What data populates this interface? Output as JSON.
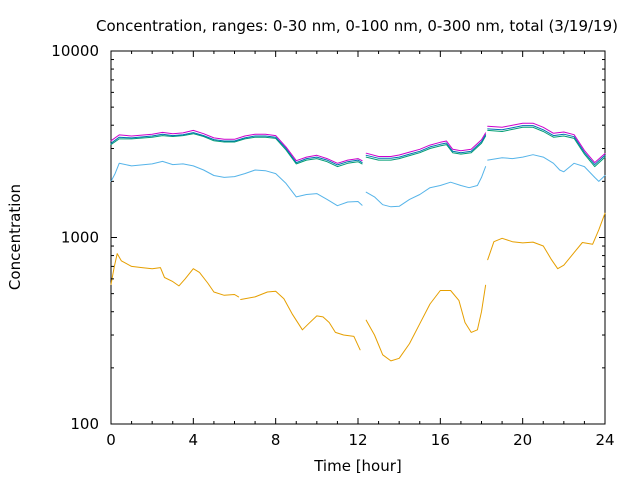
{
  "chart_data": {
    "type": "line",
    "title": "Concentration, ranges: 0-30 nm, 0-100 nm, 0-300 nm, total (3/19/19)",
    "xlabel": "Time [hour]",
    "ylabel": "Concentration",
    "xlim": [
      0,
      24
    ],
    "ylim": [
      100,
      10000
    ],
    "yscale": "log",
    "xticks": [
      0,
      4,
      8,
      12,
      16,
      20,
      24
    ],
    "yticks": [
      100,
      1000,
      10000
    ],
    "ytick_labels": [
      "100",
      "1000",
      "10000"
    ],
    "legend": "none",
    "grid": false,
    "series": [
      {
        "color": "#e69f00",
        "segments": [
          [
            [
              0,
              560
            ],
            [
              0.15,
              690
            ],
            [
              0.3,
              820
            ],
            [
              0.5,
              750
            ],
            [
              1.0,
              700
            ],
            [
              1.5,
              690
            ],
            [
              2.0,
              680
            ],
            [
              2.4,
              690
            ],
            [
              2.6,
              610
            ],
            [
              3.0,
              580
            ],
            [
              3.3,
              550
            ],
            [
              3.6,
              600
            ],
            [
              4.0,
              680
            ],
            [
              4.3,
              650
            ],
            [
              4.7,
              570
            ],
            [
              5.0,
              510
            ],
            [
              5.5,
              490
            ],
            [
              6.0,
              495
            ],
            [
              6.2,
              480
            ]
          ],
          [
            [
              6.3,
              465
            ],
            [
              7.0,
              480
            ],
            [
              7.6,
              510
            ],
            [
              8.0,
              515
            ],
            [
              8.4,
              470
            ],
            [
              8.8,
              390
            ],
            [
              9.3,
              320
            ],
            [
              9.6,
              345
            ],
            [
              10.0,
              380
            ],
            [
              10.3,
              375
            ],
            [
              10.6,
              350
            ],
            [
              10.9,
              310
            ],
            [
              11.3,
              300
            ],
            [
              11.8,
              295
            ],
            [
              12.1,
              250
            ]
          ],
          [
            [
              12.4,
              360
            ],
            [
              12.8,
              300
            ],
            [
              13.2,
              235
            ],
            [
              13.6,
              218
            ],
            [
              14.0,
              225
            ],
            [
              14.5,
              270
            ],
            [
              15.0,
              345
            ],
            [
              15.5,
              440
            ],
            [
              16.0,
              520
            ],
            [
              16.5,
              520
            ],
            [
              16.9,
              460
            ],
            [
              17.2,
              350
            ],
            [
              17.5,
              310
            ],
            [
              17.8,
              320
            ],
            [
              18.0,
              400
            ],
            [
              18.2,
              555
            ]
          ],
          [
            [
              18.3,
              760
            ],
            [
              18.6,
              950
            ],
            [
              19.0,
              990
            ],
            [
              19.5,
              950
            ],
            [
              20.0,
              935
            ],
            [
              20.5,
              945
            ],
            [
              21.0,
              900
            ],
            [
              21.4,
              760
            ],
            [
              21.7,
              680
            ],
            [
              22.0,
              710
            ],
            [
              22.5,
              830
            ],
            [
              22.9,
              940
            ],
            [
              23.4,
              920
            ],
            [
              23.7,
              1100
            ],
            [
              24.0,
              1350
            ]
          ]
        ]
      },
      {
        "color": "#56b4e9",
        "segments": [
          [
            [
              0,
              2000
            ],
            [
              0.2,
              2200
            ],
            [
              0.4,
              2500
            ],
            [
              1.0,
              2420
            ],
            [
              2.0,
              2480
            ],
            [
              2.5,
              2560
            ],
            [
              3.0,
              2460
            ],
            [
              3.5,
              2480
            ],
            [
              4.0,
              2420
            ],
            [
              4.5,
              2300
            ],
            [
              5.0,
              2150
            ],
            [
              5.5,
              2100
            ],
            [
              6.0,
              2120
            ],
            [
              6.5,
              2200
            ],
            [
              7.0,
              2300
            ],
            [
              7.5,
              2280
            ],
            [
              8.0,
              2200
            ],
            [
              8.5,
              1950
            ],
            [
              9.0,
              1650
            ],
            [
              9.5,
              1700
            ],
            [
              10.0,
              1720
            ],
            [
              10.5,
              1600
            ],
            [
              11.0,
              1480
            ],
            [
              11.5,
              1550
            ],
            [
              12.0,
              1560
            ],
            [
              12.2,
              1490
            ]
          ],
          [
            [
              12.4,
              1750
            ],
            [
              12.8,
              1650
            ],
            [
              13.2,
              1500
            ],
            [
              13.6,
              1460
            ],
            [
              14.0,
              1470
            ],
            [
              14.5,
              1600
            ],
            [
              15.0,
              1700
            ],
            [
              15.5,
              1850
            ],
            [
              16.0,
              1900
            ],
            [
              16.5,
              1980
            ],
            [
              17.0,
              1900
            ],
            [
              17.4,
              1850
            ],
            [
              17.8,
              1900
            ],
            [
              18.0,
              2100
            ],
            [
              18.2,
              2400
            ]
          ],
          [
            [
              18.3,
              2600
            ],
            [
              19.0,
              2680
            ],
            [
              19.5,
              2650
            ],
            [
              20.0,
              2700
            ],
            [
              20.5,
              2780
            ],
            [
              21.0,
              2700
            ],
            [
              21.5,
              2500
            ],
            [
              21.8,
              2300
            ],
            [
              22.0,
              2250
            ],
            [
              22.5,
              2500
            ],
            [
              23.0,
              2400
            ],
            [
              23.5,
              2100
            ],
            [
              23.7,
              2000
            ],
            [
              24.0,
              2150
            ]
          ]
        ]
      },
      {
        "color": "#009e73",
        "segments": [
          [
            [
              0,
              3150
            ],
            [
              0.4,
              3380
            ],
            [
              1.0,
              3380
            ],
            [
              2.0,
              3450
            ],
            [
              2.5,
              3520
            ],
            [
              3.0,
              3480
            ],
            [
              3.5,
              3520
            ],
            [
              4.0,
              3600
            ],
            [
              4.5,
              3480
            ],
            [
              5.0,
              3300
            ],
            [
              5.5,
              3250
            ],
            [
              6.0,
              3250
            ],
            [
              6.5,
              3380
            ],
            [
              7.0,
              3450
            ],
            [
              7.5,
              3450
            ],
            [
              8.0,
              3400
            ],
            [
              8.5,
              2950
            ],
            [
              9.0,
              2480
            ],
            [
              9.5,
              2600
            ],
            [
              10.0,
              2650
            ],
            [
              10.5,
              2550
            ],
            [
              11.0,
              2400
            ],
            [
              11.5,
              2500
            ],
            [
              12.0,
              2550
            ],
            [
              12.2,
              2480
            ]
          ],
          [
            [
              12.4,
              2700
            ],
            [
              13.0,
              2600
            ],
            [
              13.6,
              2600
            ],
            [
              14.0,
              2650
            ],
            [
              14.5,
              2750
            ],
            [
              15.0,
              2850
            ],
            [
              15.5,
              3000
            ],
            [
              16.0,
              3100
            ],
            [
              16.3,
              3150
            ],
            [
              16.6,
              2850
            ],
            [
              17.0,
              2800
            ],
            [
              17.5,
              2850
            ],
            [
              18.0,
              3200
            ],
            [
              18.2,
              3500
            ]
          ],
          [
            [
              18.3,
              3750
            ],
            [
              19.0,
              3700
            ],
            [
              19.5,
              3800
            ],
            [
              20.0,
              3900
            ],
            [
              20.5,
              3900
            ],
            [
              21.0,
              3700
            ],
            [
              21.5,
              3450
            ],
            [
              22.0,
              3500
            ],
            [
              22.5,
              3400
            ],
            [
              23.0,
              2800
            ],
            [
              23.5,
              2400
            ],
            [
              24.0,
              2700
            ]
          ]
        ]
      },
      {
        "color": "#0072b2",
        "segments": [
          [
            [
              0,
              3200
            ],
            [
              0.4,
              3450
            ],
            [
              1.0,
              3420
            ],
            [
              2.0,
              3500
            ],
            [
              2.5,
              3580
            ],
            [
              3.0,
              3520
            ],
            [
              3.5,
              3560
            ],
            [
              4.0,
              3650
            ],
            [
              4.5,
              3520
            ],
            [
              5.0,
              3350
            ],
            [
              5.5,
              3290
            ],
            [
              6.0,
              3290
            ],
            [
              6.5,
              3420
            ],
            [
              7.0,
              3500
            ],
            [
              7.5,
              3500
            ],
            [
              8.0,
              3450
            ],
            [
              8.5,
              3000
            ],
            [
              9.0,
              2520
            ],
            [
              9.5,
              2650
            ],
            [
              10.0,
              2700
            ],
            [
              10.5,
              2600
            ],
            [
              11.0,
              2450
            ],
            [
              11.5,
              2550
            ],
            [
              12.0,
              2600
            ],
            [
              12.2,
              2520
            ]
          ],
          [
            [
              12.4,
              2760
            ],
            [
              13.0,
              2660
            ],
            [
              13.6,
              2660
            ],
            [
              14.0,
              2700
            ],
            [
              14.5,
              2800
            ],
            [
              15.0,
              2900
            ],
            [
              15.5,
              3060
            ],
            [
              16.0,
              3160
            ],
            [
              16.3,
              3210
            ],
            [
              16.6,
              2900
            ],
            [
              17.0,
              2850
            ],
            [
              17.5,
              2900
            ],
            [
              18.0,
              3260
            ],
            [
              18.2,
              3560
            ]
          ],
          [
            [
              18.3,
              3820
            ],
            [
              19.0,
              3780
            ],
            [
              19.5,
              3880
            ],
            [
              20.0,
              3980
            ],
            [
              20.5,
              3980
            ],
            [
              21.0,
              3780
            ],
            [
              21.5,
              3520
            ],
            [
              22.0,
              3580
            ],
            [
              22.5,
              3470
            ],
            [
              23.0,
              2860
            ],
            [
              23.5,
              2460
            ],
            [
              24.0,
              2760
            ]
          ]
        ]
      },
      {
        "color": "#cc00cc",
        "segments": [
          [
            [
              0,
              3300
            ],
            [
              0.4,
              3550
            ],
            [
              1.0,
              3500
            ],
            [
              2.0,
              3580
            ],
            [
              2.5,
              3660
            ],
            [
              3.0,
              3600
            ],
            [
              3.5,
              3640
            ],
            [
              4.0,
              3750
            ],
            [
              4.5,
              3600
            ],
            [
              5.0,
              3420
            ],
            [
              5.5,
              3360
            ],
            [
              6.0,
              3360
            ],
            [
              6.5,
              3500
            ],
            [
              7.0,
              3580
            ],
            [
              7.5,
              3580
            ],
            [
              8.0,
              3520
            ],
            [
              8.5,
              3060
            ],
            [
              9.0,
              2580
            ],
            [
              9.5,
              2700
            ],
            [
              10.0,
              2760
            ],
            [
              10.5,
              2650
            ],
            [
              11.0,
              2500
            ],
            [
              11.5,
              2600
            ],
            [
              12.0,
              2650
            ],
            [
              12.2,
              2580
            ]
          ],
          [
            [
              12.4,
              2830
            ],
            [
              13.0,
              2720
            ],
            [
              13.6,
              2720
            ],
            [
              14.0,
              2770
            ],
            [
              14.5,
              2870
            ],
            [
              15.0,
              2970
            ],
            [
              15.5,
              3130
            ],
            [
              16.0,
              3240
            ],
            [
              16.3,
              3290
            ],
            [
              16.6,
              2970
            ],
            [
              17.0,
              2920
            ],
            [
              17.5,
              2970
            ],
            [
              18.0,
              3340
            ],
            [
              18.2,
              3640
            ]
          ],
          [
            [
              18.3,
              3950
            ],
            [
              19.0,
              3900
            ],
            [
              19.5,
              4000
            ],
            [
              20.0,
              4100
            ],
            [
              20.5,
              4100
            ],
            [
              21.0,
              3900
            ],
            [
              21.5,
              3620
            ],
            [
              22.0,
              3680
            ],
            [
              22.5,
              3560
            ],
            [
              23.0,
              2930
            ],
            [
              23.5,
              2520
            ],
            [
              24.0,
              2820
            ]
          ]
        ]
      }
    ]
  }
}
